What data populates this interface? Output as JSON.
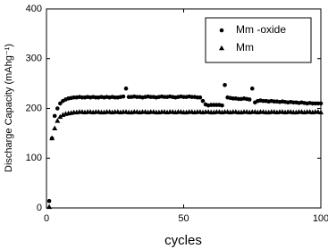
{
  "chart_data": {
    "type": "scatter",
    "x_label": "cycles",
    "y_label": "Discharge Capacity (mAhg⁻¹)",
    "x": [
      1,
      2,
      3,
      4,
      5,
      6,
      7,
      8,
      9,
      10,
      11,
      12,
      13,
      14,
      15,
      16,
      17,
      18,
      19,
      20,
      21,
      22,
      23,
      24,
      25,
      26,
      27,
      28,
      29,
      30,
      31,
      32,
      33,
      34,
      35,
      36,
      37,
      38,
      39,
      40,
      41,
      42,
      43,
      44,
      45,
      46,
      47,
      48,
      49,
      50,
      51,
      52,
      53,
      54,
      55,
      56,
      57,
      58,
      59,
      60,
      61,
      62,
      63,
      64,
      65,
      66,
      67,
      68,
      69,
      70,
      71,
      72,
      73,
      74,
      75,
      76,
      77,
      78,
      79,
      80,
      81,
      82,
      83,
      84,
      85,
      86,
      87,
      88,
      89,
      90,
      91,
      92,
      93,
      94,
      95,
      96,
      97,
      98,
      99,
      100
    ],
    "series": [
      {
        "name": "Mm -oxide",
        "color": "#000000",
        "marker": "circle",
        "values": [
          14,
          140,
          185,
          200,
          210,
          215,
          218,
          220,
          221,
          222,
          222,
          223,
          222,
          222,
          223,
          222,
          223,
          222,
          222,
          223,
          222,
          223,
          222,
          223,
          222,
          222,
          223,
          224,
          240,
          223,
          223,
          224,
          223,
          223,
          222,
          223,
          224,
          223,
          223,
          222,
          223,
          224,
          223,
          223,
          224,
          223,
          222,
          223,
          224,
          223,
          223,
          224,
          223,
          223,
          222,
          222,
          215,
          208,
          206,
          207,
          207,
          207,
          207,
          206,
          247,
          222,
          221,
          220,
          220,
          219,
          219,
          220,
          219,
          218,
          240,
          212,
          215,
          216,
          215,
          215,
          214,
          215,
          214,
          214,
          213,
          214,
          213,
          212,
          213,
          212,
          212,
          211,
          212,
          211,
          210,
          211,
          210,
          210,
          210,
          210
        ]
      },
      {
        "name": "Mm",
        "color": "#000000",
        "marker": "triangle",
        "values": [
          2,
          140,
          160,
          175,
          183,
          187,
          189,
          190,
          191,
          192,
          192,
          193,
          193,
          192,
          193,
          193,
          192,
          193,
          193,
          192,
          192,
          193,
          193,
          192,
          193,
          193,
          192,
          193,
          193,
          192,
          192,
          193,
          193,
          192,
          193,
          193,
          192,
          193,
          193,
          192,
          192,
          193,
          193,
          192,
          193,
          193,
          192,
          193,
          193,
          192,
          192,
          193,
          193,
          192,
          193,
          193,
          192,
          193,
          193,
          192,
          192,
          193,
          193,
          192,
          193,
          193,
          192,
          193,
          193,
          192,
          192,
          193,
          193,
          192,
          193,
          193,
          192,
          193,
          193,
          192,
          192,
          193,
          193,
          192,
          193,
          193,
          192,
          193,
          193,
          192,
          192,
          193,
          193,
          192,
          193,
          193,
          192,
          193,
          193,
          192
        ]
      }
    ],
    "xlim": [
      0,
      100
    ],
    "xticks": [
      0,
      50,
      100
    ],
    "ylim": [
      0,
      400
    ],
    "yticks": [
      0,
      100,
      200,
      300,
      400
    ],
    "legend": "upper right"
  }
}
